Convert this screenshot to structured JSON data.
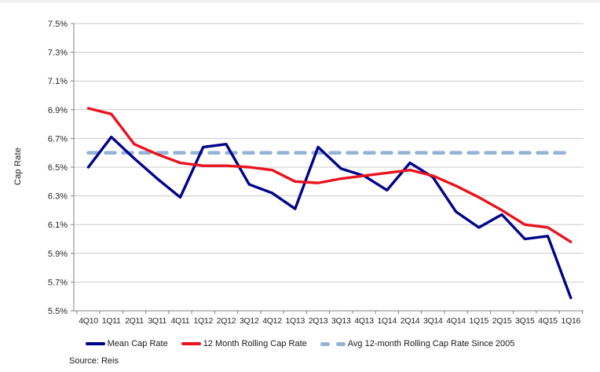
{
  "source_note": "Source: Reis",
  "colors": {
    "mean_line": "#00008B",
    "rolling_line": "#E8131D",
    "avg_line": "#95B3D7",
    "gridline": "#C9C9C9",
    "axis": "#808080",
    "tick_text": "#262626"
  },
  "chart_data": {
    "type": "line",
    "title": "",
    "xlabel": "",
    "ylabel": "Cap Rate",
    "ylim": [
      5.5,
      7.5
    ],
    "ytick_step": 0.2,
    "yticks": [
      "5.5%",
      "5.7%",
      "5.9%",
      "6.1%",
      "6.3%",
      "6.5%",
      "6.7%",
      "6.9%",
      "7.1%",
      "7.3%",
      "7.5%"
    ],
    "grid": true,
    "legend_position": "bottom",
    "categories": [
      "4Q10",
      "1Q11",
      "2Q11",
      "3Q11",
      "4Q11",
      "1Q12",
      "2Q12",
      "3Q12",
      "4Q12",
      "1Q13",
      "2Q13",
      "3Q13",
      "4Q13",
      "1Q14",
      "2Q14",
      "3Q14",
      "4Q14",
      "1Q15",
      "2Q15",
      "3Q15",
      "4Q15",
      "1Q16"
    ],
    "series": [
      {
        "name": "Mean Cap Rate",
        "color": "#00008B",
        "style": "solid",
        "values": [
          6.5,
          6.71,
          6.56,
          6.42,
          6.29,
          6.64,
          6.66,
          6.38,
          6.32,
          6.21,
          6.64,
          6.49,
          6.44,
          6.34,
          6.53,
          6.43,
          6.19,
          6.08,
          6.17,
          6.0,
          6.02,
          5.59
        ]
      },
      {
        "name": "12 Month Rolling Cap Rate",
        "color": "#E8131D",
        "style": "solid",
        "values": [
          6.91,
          6.87,
          6.66,
          6.59,
          6.53,
          6.51,
          6.51,
          6.5,
          6.48,
          6.4,
          6.39,
          6.42,
          6.44,
          6.46,
          6.48,
          6.44,
          6.37,
          6.29,
          6.2,
          6.1,
          6.08,
          5.98
        ]
      },
      {
        "name": "Avg 12-month Rolling Cap Rate Since 2005",
        "color": "#95B3D7",
        "style": "dashed",
        "constant": 6.6
      }
    ]
  }
}
